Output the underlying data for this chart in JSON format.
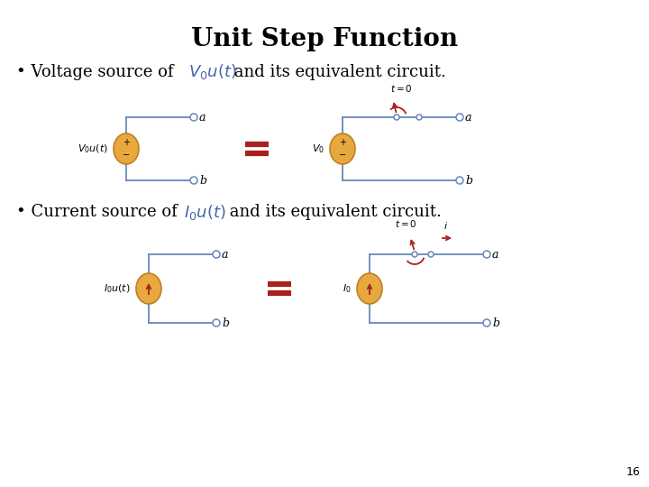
{
  "title": "Unit Step Function",
  "title_fontsize": 20,
  "title_fontweight": "bold",
  "bg_color": "#ffffff",
  "circuit_color": "#6888bb",
  "source_fill": "#e8a840",
  "source_edge": "#c08020",
  "red_color": "#aa2020",
  "text_italic_color": "#4466aa",
  "bullet1_pre": "Voltage source of ",
  "bullet1_math": "$V_0u(t)$",
  "bullet1_post": " and its equivalent circuit.",
  "bullet2_pre": "Current source of ",
  "bullet2_math": "$I_0u(t)$",
  "bullet2_post": " and its equivalent circuit.",
  "page_number": "16",
  "font_size_bullet": 13,
  "font_size_small": 8
}
